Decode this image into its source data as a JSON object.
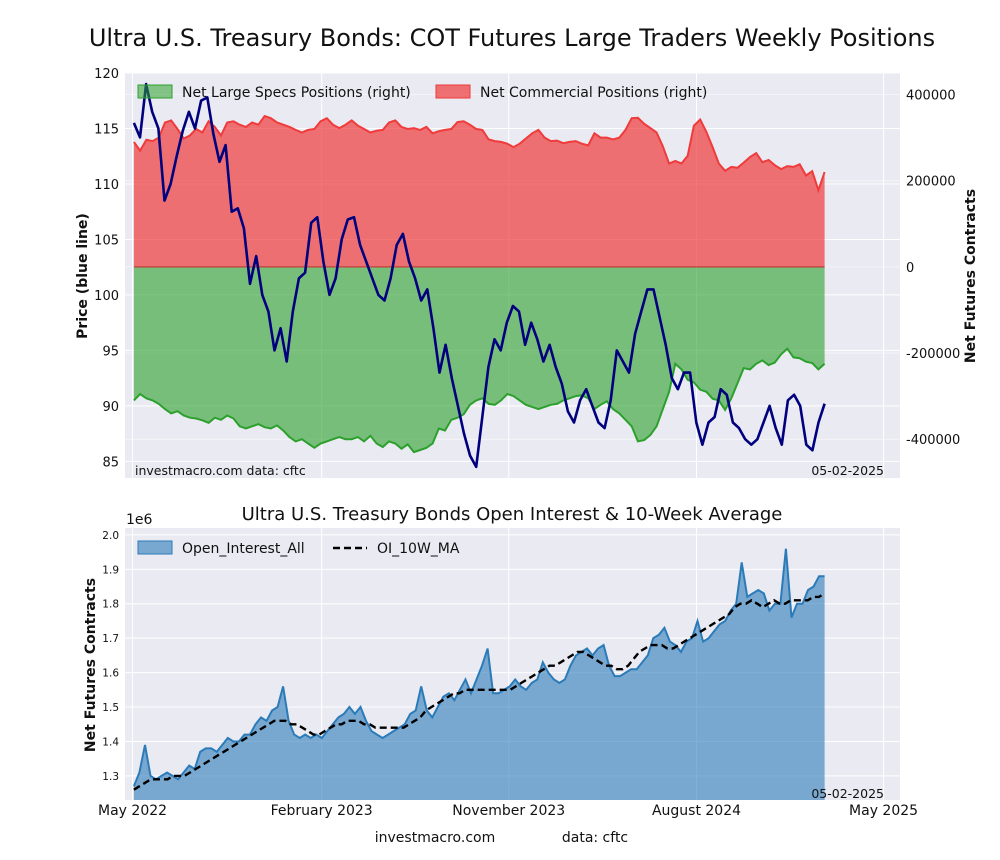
{
  "figure": {
    "title": "Ultra U.S. Treasury Bonds: COT Futures Large Traders Weekly Positions",
    "footer_left": "investmacro.com",
    "footer_right": "data: cftc"
  },
  "chart_data": [
    {
      "type": "area",
      "panel": "positions",
      "title": "",
      "ylabel_left": "Price (blue line)",
      "ylabel_right": "Net Futures Contracts",
      "ylim_left": [
        83.5,
        120
      ],
      "ylim_right": [
        -490000,
        450000
      ],
      "yticks_left": [
        "85",
        "90",
        "95",
        "100",
        "105",
        "110",
        "115",
        "120"
      ],
      "yticks_right": [
        "-400000",
        "-200000",
        "0",
        "200000",
        "400000"
      ],
      "x_start": "2022-05-03",
      "x_end": "2025-02-04",
      "grid": true,
      "legend_position": "top",
      "watermark_left": "investmacro.com      data: cftc",
      "watermark_right": "05-02-2025",
      "series": [
        {
          "name": "Net Large Specs Positions (right)",
          "kind": "area",
          "axis": "right",
          "color": "#2ca02c",
          "values": [
            -310000,
            -295000,
            -305000,
            -310000,
            -318000,
            -330000,
            -340000,
            -335000,
            -345000,
            -350000,
            -352000,
            -356000,
            -362000,
            -350000,
            -355000,
            -345000,
            -352000,
            -370000,
            -375000,
            -370000,
            -365000,
            -372000,
            -375000,
            -368000,
            -380000,
            -395000,
            -405000,
            -400000,
            -410000,
            -420000,
            -410000,
            -405000,
            -400000,
            -395000,
            -400000,
            -400000,
            -395000,
            -405000,
            -392000,
            -410000,
            -418000,
            -405000,
            -410000,
            -422000,
            -412000,
            -430000,
            -425000,
            -420000,
            -410000,
            -375000,
            -380000,
            -355000,
            -350000,
            -342000,
            -320000,
            -310000,
            -305000,
            -318000,
            -320000,
            -310000,
            -295000,
            -300000,
            -310000,
            -320000,
            -325000,
            -330000,
            -325000,
            -320000,
            -318000,
            -310000,
            -305000,
            -300000,
            -298000,
            -305000,
            -330000,
            -320000,
            -312000,
            -330000,
            -340000,
            -355000,
            -370000,
            -405000,
            -402000,
            -390000,
            -370000,
            -330000,
            -290000,
            -225000,
            -238000,
            -262000,
            -268000,
            -285000,
            -290000,
            -306000,
            -310000,
            -332000,
            -305000,
            -270000,
            -235000,
            -238000,
            -225000,
            -217000,
            -228000,
            -222000,
            -203000,
            -190000,
            -210000,
            -212000,
            -220000,
            -223000,
            -238000,
            -225000
          ],
          "value_unit": "contracts"
        },
        {
          "name": "Net Commercial Positions (right)",
          "kind": "area",
          "axis": "right",
          "color": "#ef3b3b",
          "values": [
            290000,
            270000,
            295000,
            292000,
            300000,
            335000,
            340000,
            320000,
            298000,
            305000,
            320000,
            312000,
            338000,
            325000,
            305000,
            335000,
            338000,
            330000,
            325000,
            335000,
            330000,
            350000,
            345000,
            335000,
            330000,
            325000,
            318000,
            312000,
            318000,
            320000,
            338000,
            345000,
            330000,
            322000,
            330000,
            340000,
            328000,
            320000,
            312000,
            316000,
            318000,
            335000,
            340000,
            325000,
            320000,
            322000,
            318000,
            325000,
            310000,
            315000,
            318000,
            320000,
            336000,
            338000,
            330000,
            320000,
            318000,
            296000,
            292000,
            290000,
            286000,
            278000,
            286000,
            298000,
            310000,
            318000,
            300000,
            292000,
            293000,
            287000,
            290000,
            292000,
            286000,
            282000,
            310000,
            300000,
            300000,
            296000,
            300000,
            318000,
            345000,
            346000,
            332000,
            322000,
            312000,
            280000,
            240000,
            246000,
            240000,
            258000,
            328000,
            342000,
            313000,
            278000,
            240000,
            223000,
            232000,
            230000,
            242000,
            255000,
            264000,
            243000,
            248000,
            236000,
            227000,
            234000,
            232000,
            238000,
            212000,
            222000,
            178000,
            220000
          ],
          "value_unit": "contracts"
        },
        {
          "name": "",
          "kind": "line",
          "axis": "left",
          "color": "#00007f",
          "description_label": "Price (blue line)",
          "values": [
            115.5,
            114.2,
            119.0,
            116.5,
            115.0,
            108.5,
            110.0,
            112.5,
            114.8,
            116.5,
            115.0,
            117.5,
            117.8,
            114.5,
            112.0,
            113.5,
            107.5,
            107.8,
            106.0,
            101.0,
            103.5,
            100.0,
            98.5,
            95.0,
            97.0,
            94.0,
            98.5,
            101.5,
            102.0,
            106.5,
            107.0,
            103.0,
            100.0,
            101.5,
            105.0,
            106.8,
            107.0,
            104.5,
            103.0,
            101.5,
            100.0,
            99.5,
            101.5,
            104.5,
            105.5,
            103.0,
            101.5,
            99.5,
            100.5,
            97.0,
            93.0,
            95.5,
            92.5,
            90.0,
            87.5,
            85.5,
            84.5,
            89.0,
            93.5,
            96.0,
            95.0,
            97.5,
            99.0,
            98.5,
            95.5,
            97.5,
            96.0,
            94.0,
            95.5,
            93.5,
            92.0,
            89.5,
            88.5,
            90.5,
            91.5,
            90.0,
            88.5,
            88.0,
            90.5,
            95.0,
            94.0,
            93.0,
            96.5,
            98.5,
            100.5,
            100.5,
            98.0,
            95.5,
            92.5,
            91.5,
            93.0,
            93.0,
            88.5,
            86.5,
            88.5,
            89.0,
            91.5,
            91.0,
            88.5,
            88.0,
            87.0,
            86.5,
            87.0,
            88.5,
            90.0,
            88.0,
            86.5,
            90.5,
            91.0,
            90.0,
            86.5,
            86.0,
            88.5,
            90.2
          ],
          "value_unit": "price"
        }
      ]
    },
    {
      "type": "area",
      "panel": "open_interest",
      "title": "Ultra U.S. Treasury Bonds Open Interest & 10-Week Average",
      "ylabel": "Net Futures Contracts",
      "offset_label": "1e6",
      "ylim": [
        1.23,
        2.02
      ],
      "yticks": [
        "1.3",
        "1.4",
        "1.5",
        "1.6",
        "1.7",
        "1.8",
        "1.9",
        "2.0"
      ],
      "xticks": [
        "May 2022",
        "February 2023",
        "November 2023",
        "August 2024",
        "May 2025"
      ],
      "x_start": "2022-05-03",
      "x_end": "2025-02-04",
      "grid": true,
      "legend_position": "top-left",
      "watermark_right": "05-02-2025",
      "series": [
        {
          "name": "Open_Interest_All",
          "kind": "area",
          "color": "#2b7bb9",
          "values": [
            1.27,
            1.31,
            1.39,
            1.3,
            1.29,
            1.3,
            1.31,
            1.3,
            1.29,
            1.31,
            1.33,
            1.32,
            1.37,
            1.38,
            1.38,
            1.37,
            1.39,
            1.41,
            1.4,
            1.4,
            1.42,
            1.42,
            1.45,
            1.47,
            1.46,
            1.49,
            1.5,
            1.56,
            1.46,
            1.42,
            1.41,
            1.42,
            1.41,
            1.42,
            1.41,
            1.43,
            1.45,
            1.47,
            1.48,
            1.5,
            1.48,
            1.5,
            1.46,
            1.43,
            1.42,
            1.41,
            1.42,
            1.43,
            1.44,
            1.45,
            1.48,
            1.49,
            1.56,
            1.49,
            1.47,
            1.5,
            1.53,
            1.54,
            1.52,
            1.55,
            1.58,
            1.54,
            1.58,
            1.62,
            1.67,
            1.54,
            1.54,
            1.55,
            1.56,
            1.58,
            1.56,
            1.55,
            1.57,
            1.58,
            1.63,
            1.6,
            1.58,
            1.57,
            1.58,
            1.62,
            1.65,
            1.66,
            1.67,
            1.65,
            1.67,
            1.68,
            1.62,
            1.59,
            1.59,
            1.6,
            1.61,
            1.61,
            1.63,
            1.65,
            1.7,
            1.71,
            1.73,
            1.69,
            1.68,
            1.66,
            1.69,
            1.7,
            1.75,
            1.69,
            1.7,
            1.72,
            1.74,
            1.75,
            1.78,
            1.8,
            1.92,
            1.82,
            1.83,
            1.84,
            1.83,
            1.78,
            1.8,
            1.8,
            1.96,
            1.76,
            1.8,
            1.8,
            1.84,
            1.85,
            1.88,
            1.88
          ],
          "value_unit": "millions"
        },
        {
          "name": "OI_10W_MA",
          "kind": "line",
          "style": "dashed",
          "color": "#000000",
          "values": [
            1.26,
            1.27,
            1.28,
            1.29,
            1.29,
            1.29,
            1.29,
            1.3,
            1.3,
            1.3,
            1.31,
            1.32,
            1.33,
            1.34,
            1.35,
            1.36,
            1.37,
            1.38,
            1.39,
            1.4,
            1.41,
            1.42,
            1.43,
            1.44,
            1.45,
            1.46,
            1.46,
            1.46,
            1.45,
            1.45,
            1.44,
            1.43,
            1.42,
            1.42,
            1.43,
            1.44,
            1.45,
            1.45,
            1.46,
            1.46,
            1.46,
            1.45,
            1.45,
            1.44,
            1.44,
            1.44,
            1.44,
            1.44,
            1.44,
            1.45,
            1.46,
            1.47,
            1.49,
            1.5,
            1.51,
            1.52,
            1.53,
            1.54,
            1.54,
            1.55,
            1.55,
            1.55,
            1.55,
            1.55,
            1.55,
            1.55,
            1.55,
            1.55,
            1.56,
            1.57,
            1.58,
            1.59,
            1.6,
            1.61,
            1.62,
            1.62,
            1.63,
            1.64,
            1.65,
            1.66,
            1.66,
            1.65,
            1.64,
            1.63,
            1.62,
            1.62,
            1.61,
            1.61,
            1.62,
            1.64,
            1.66,
            1.67,
            1.68,
            1.68,
            1.68,
            1.67,
            1.67,
            1.68,
            1.69,
            1.7,
            1.71,
            1.72,
            1.73,
            1.74,
            1.75,
            1.76,
            1.77,
            1.79,
            1.8,
            1.8,
            1.81,
            1.8,
            1.79,
            1.8,
            1.81,
            1.8,
            1.8,
            1.81,
            1.81,
            1.81,
            1.81,
            1.82,
            1.82,
            1.83
          ],
          "value_unit": "millions"
        }
      ]
    }
  ]
}
